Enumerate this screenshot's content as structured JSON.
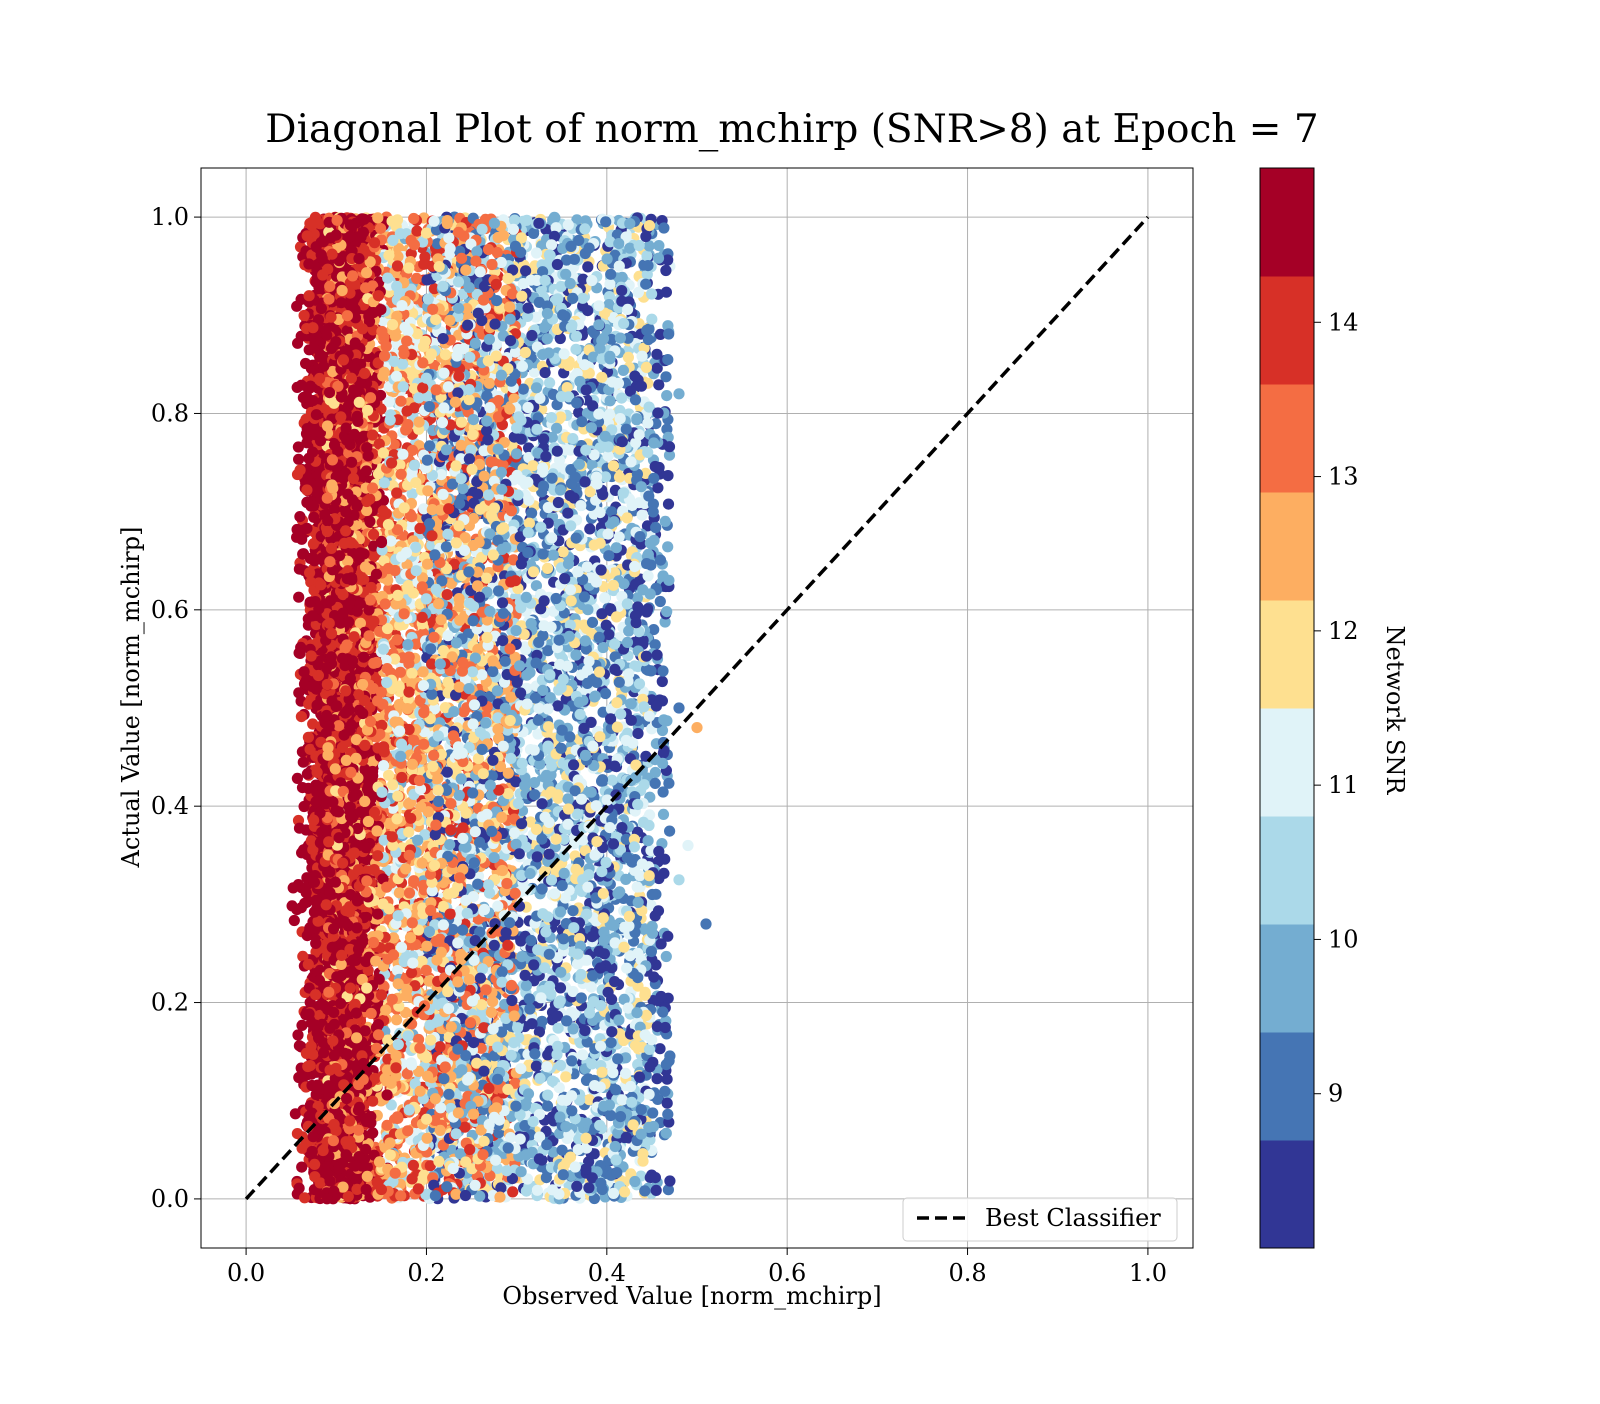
{
  "chart_data": {
    "type": "scatter",
    "title": "Diagonal Plot of norm_mchirp (SNR>8) at Epoch = 7",
    "xlabel": "Observed Value [norm_mchirp]",
    "ylabel": "Actual Value [norm_mchirp]",
    "xlim": [
      -0.05,
      1.05
    ],
    "ylim": [
      -0.05,
      1.05
    ],
    "x_ticks": [
      "0.0",
      "0.2",
      "0.4",
      "0.6",
      "0.8",
      "1.0"
    ],
    "y_ticks": [
      "0.0",
      "0.2",
      "0.4",
      "0.6",
      "0.8",
      "1.0"
    ],
    "grid": true,
    "legend": {
      "placement": "lower right",
      "entries": [
        "Best Classifier"
      ]
    },
    "reference_line": {
      "name": "Best Classifier",
      "x": [
        0.0,
        1.0
      ],
      "y": [
        0.0,
        1.0
      ],
      "style": "dashed",
      "color": "#000000"
    },
    "colorbar": {
      "label": "Network SNR",
      "range": [
        8,
        15
      ],
      "tick_labels": [
        "9",
        "10",
        "11",
        "12",
        "13",
        "14"
      ],
      "colors": [
        "#313695",
        "#4575b4",
        "#74add1",
        "#abd9e9",
        "#e0f3f8",
        "#fee090",
        "#fdae61",
        "#f46d43",
        "#d73027",
        "#a50026"
      ]
    },
    "series": [
      {
        "x_range_by_snr": [
          {
            "snr_min": 14,
            "snr_max": 15,
            "x_min": 0.07,
            "x_max": 0.14
          },
          {
            "snr_min": 12,
            "snr_max": 14,
            "x_min": 0.09,
            "x_max": 0.3
          },
          {
            "snr_min": 10,
            "snr_max": 12,
            "x_min": 0.15,
            "x_max": 0.45
          },
          {
            "snr_min": 8,
            "snr_max": 10,
            "x_min": 0.2,
            "x_max": 0.47
          }
        ],
        "y_range": [
          0.0,
          1.0
        ],
        "outliers": [
          {
            "x": 0.51,
            "y": 0.28,
            "snr": 9.2
          },
          {
            "x": 0.5,
            "y": 0.48,
            "snr": 12.5
          },
          {
            "x": 0.48,
            "y": 0.82,
            "snr": 9.8
          },
          {
            "x": 0.48,
            "y": 0.325,
            "snr": 10.2
          },
          {
            "x": 0.49,
            "y": 0.36,
            "snr": 10.8
          },
          {
            "x": 0.47,
            "y": 0.95,
            "snr": 11.2
          },
          {
            "x": 0.48,
            "y": 0.5,
            "snr": 9.1
          }
        ]
      }
    ]
  }
}
